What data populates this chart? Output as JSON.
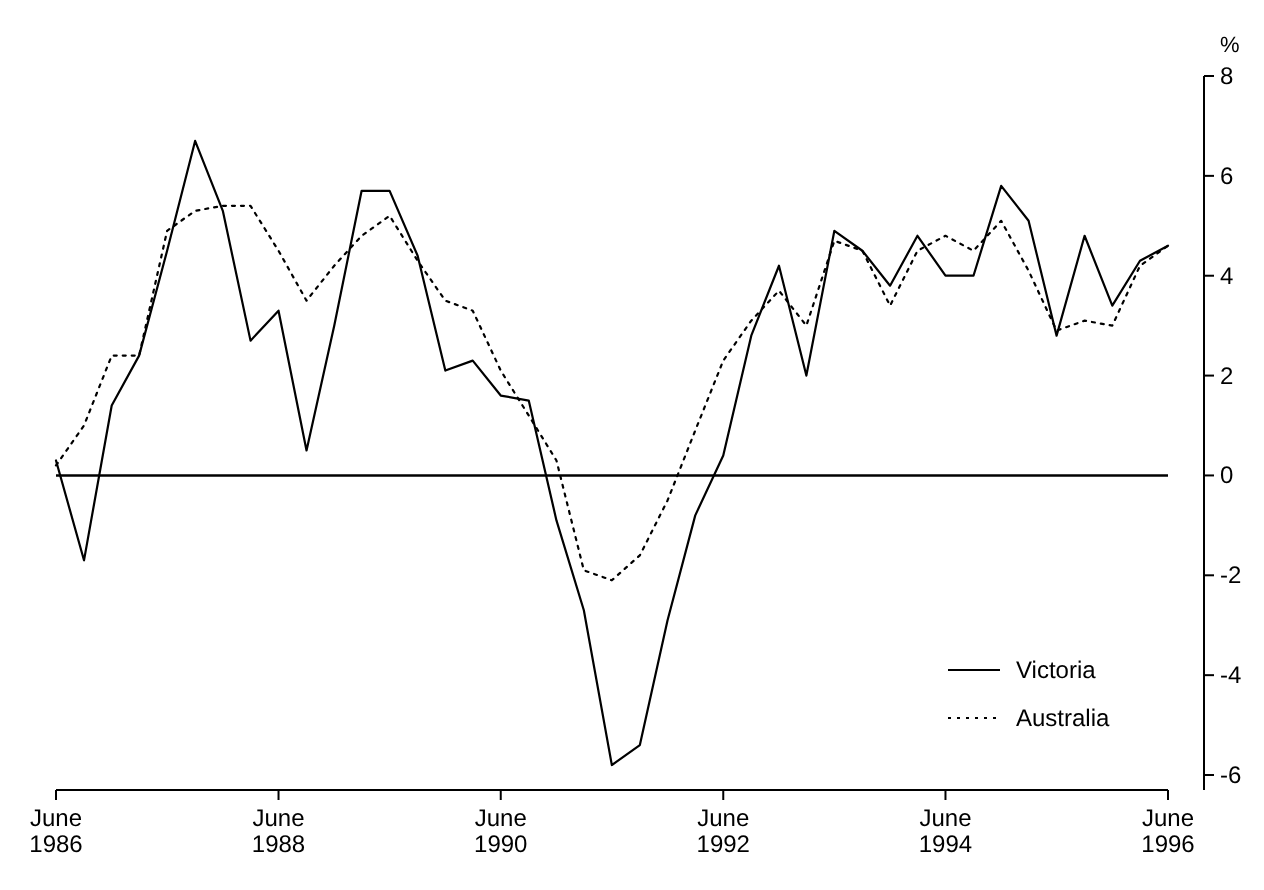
{
  "chart_data": {
    "type": "line",
    "ylabel": "%",
    "x": [
      "1986-06",
      "1986-09",
      "1986-12",
      "1987-03",
      "1987-06",
      "1987-09",
      "1987-12",
      "1988-03",
      "1988-06",
      "1988-09",
      "1988-12",
      "1989-03",
      "1989-06",
      "1989-09",
      "1989-12",
      "1990-03",
      "1990-06",
      "1990-09",
      "1990-12",
      "1991-03",
      "1991-06",
      "1991-09",
      "1991-12",
      "1992-03",
      "1992-06",
      "1992-09",
      "1992-12",
      "1993-03",
      "1993-06",
      "1993-09",
      "1993-12",
      "1994-03",
      "1994-06",
      "1994-09",
      "1994-12",
      "1995-03",
      "1995-06",
      "1995-09",
      "1995-12",
      "1996-03",
      "1996-06"
    ],
    "series": [
      {
        "name": "Victoria",
        "color": "#000000",
        "line_style": "solid",
        "values": [
          0.3,
          -1.7,
          1.4,
          2.4,
          4.5,
          6.7,
          5.3,
          2.7,
          3.3,
          0.5,
          3.0,
          5.7,
          5.7,
          4.4,
          2.1,
          2.3,
          1.6,
          1.5,
          -0.9,
          -2.7,
          -5.8,
          -5.4,
          -2.9,
          -0.8,
          0.4,
          2.8,
          4.2,
          2.0,
          4.9,
          4.5,
          3.8,
          4.8,
          4.0,
          4.0,
          5.8,
          5.1,
          2.8,
          4.8,
          3.4,
          4.3,
          4.6
        ]
      },
      {
        "name": "Australia",
        "color": "#000000",
        "line_style": "dotted",
        "values": [
          0.2,
          1.0,
          2.4,
          2.4,
          4.9,
          5.3,
          5.4,
          5.4,
          4.5,
          3.5,
          4.2,
          4.8,
          5.2,
          4.3,
          3.5,
          3.3,
          2.1,
          1.2,
          0.3,
          -1.9,
          -2.1,
          -1.6,
          -0.5,
          0.9,
          2.3,
          3.1,
          3.7,
          3.0,
          4.7,
          4.5,
          3.4,
          4.5,
          4.8,
          4.5,
          5.1,
          4.1,
          2.9,
          3.1,
          3.0,
          4.2,
          4.6
        ]
      }
    ],
    "xlim": [
      "1986-06",
      "1996-06"
    ],
    "xticks": [
      {
        "value": "1986-06",
        "label": "June 1986"
      },
      {
        "value": "1988-06",
        "label": "June 1988"
      },
      {
        "value": "1990-06",
        "label": "June 1990"
      },
      {
        "value": "1992-06",
        "label": "June 1992"
      },
      {
        "value": "1994-06",
        "label": "June 1994"
      },
      {
        "value": "1996-06",
        "label": "June 1996"
      }
    ],
    "ylim": [
      -6.3,
      8
    ],
    "yticks": [
      -6,
      -4,
      -2,
      0,
      2,
      4,
      6,
      8
    ],
    "ref_lines": [
      {
        "axis": "y",
        "value": 0,
        "color": "#000000",
        "line_style": "solid"
      }
    ],
    "grid": false,
    "legend": "bottom right",
    "marker": "none"
  }
}
